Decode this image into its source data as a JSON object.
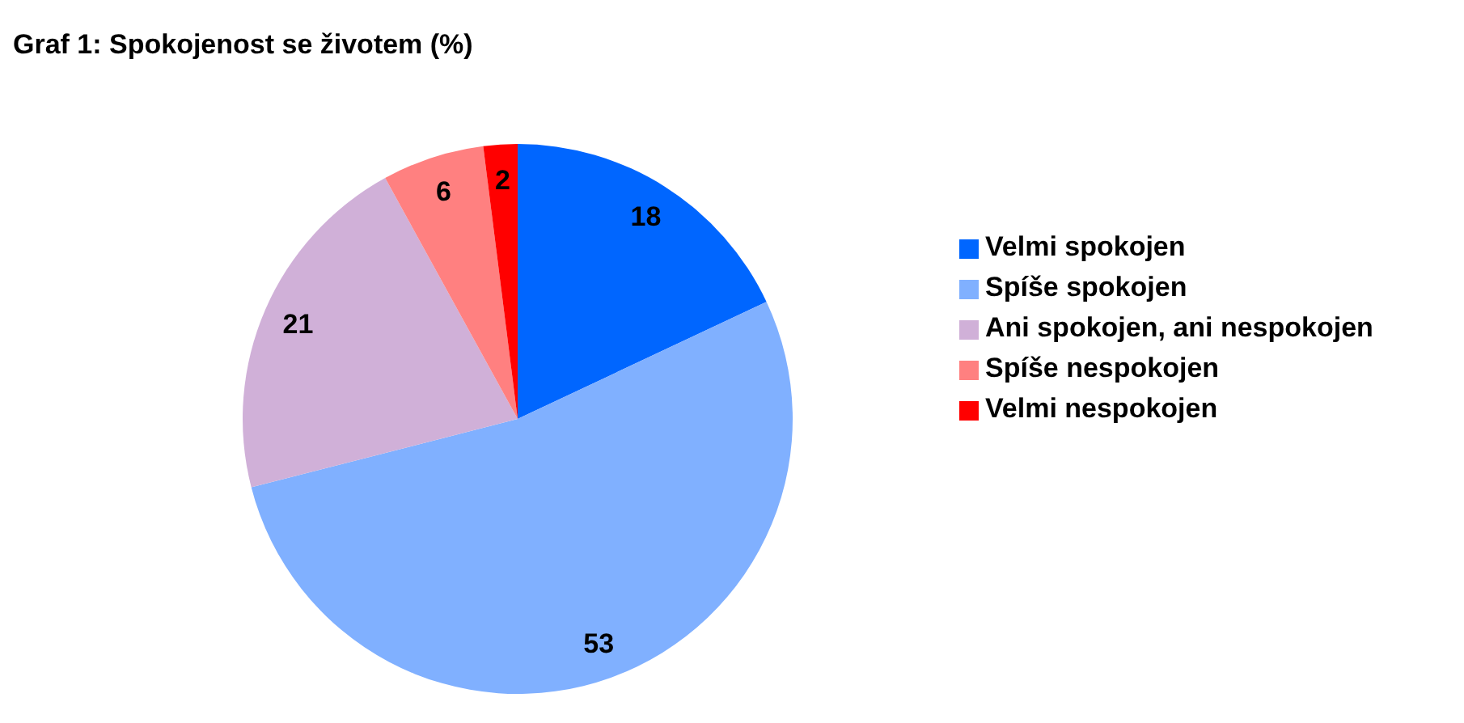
{
  "chart_data": {
    "type": "pie",
    "title": "Graf 1: Spokojenost se životem (%)",
    "categories": [
      "Velmi spokojen",
      "Spíše spokojen",
      "Ani spokojen, ani nespokojen",
      "Spíše nespokojen",
      "Velmi nespokojen"
    ],
    "values": [
      18,
      53,
      21,
      6,
      2
    ],
    "colors": [
      "#0066ff",
      "#80b0ff",
      "#d0b0d8",
      "#ff8080",
      "#ff0000"
    ],
    "data_labels": true,
    "legend": "right"
  }
}
